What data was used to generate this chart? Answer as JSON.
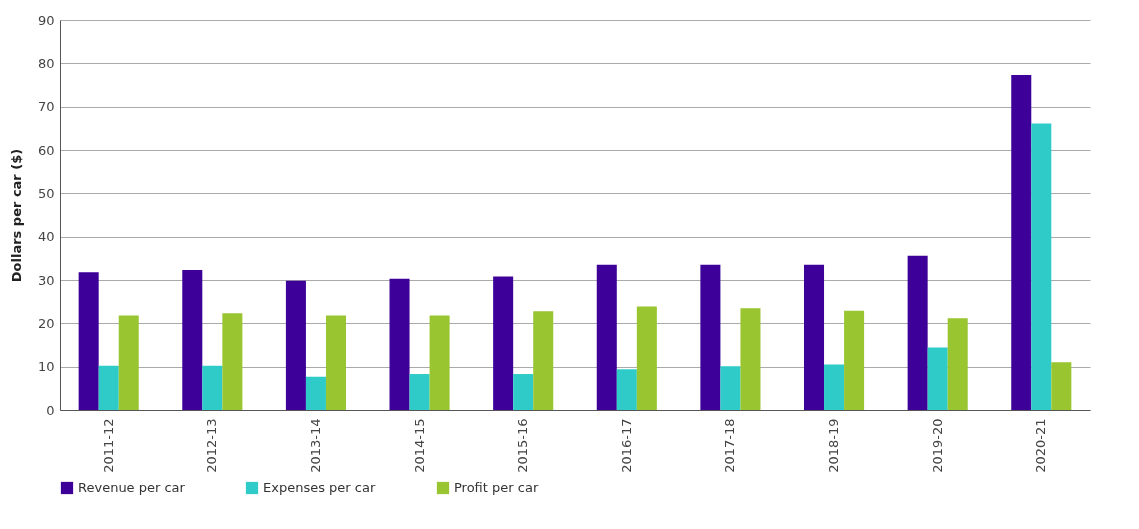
{
  "chart_data": {
    "type": "bar",
    "ylabel": "Dollars per car ($)",
    "categories": [
      "2011-12",
      "2012-13",
      "2013-14",
      "2014-15",
      "2015-16",
      "2016-17",
      "2017-18",
      "2018-19",
      "2019-20",
      "2020-21"
    ],
    "series": [
      {
        "name": "Revenue per car",
        "color": "#3d0099",
        "values": [
          31.8,
          32.3,
          29.8,
          30.3,
          30.8,
          33.5,
          33.5,
          33.5,
          35.6,
          77.3
        ]
      },
      {
        "name": "Expenses per car",
        "color": "#2ecbc9",
        "values": [
          10.2,
          10.2,
          7.7,
          8.3,
          8.3,
          9.4,
          10.1,
          10.5,
          14.4,
          66.1
        ]
      },
      {
        "name": "Profit per car",
        "color": "#99c531",
        "values": [
          21.8,
          22.3,
          21.8,
          21.8,
          22.8,
          23.9,
          23.5,
          22.9,
          21.2,
          11.0
        ]
      }
    ],
    "ylim": [
      0,
      90
    ],
    "yticks": [
      0,
      10,
      20,
      30,
      40,
      50,
      60,
      70,
      80,
      90
    ],
    "grid": "y",
    "legend": "bottom"
  }
}
